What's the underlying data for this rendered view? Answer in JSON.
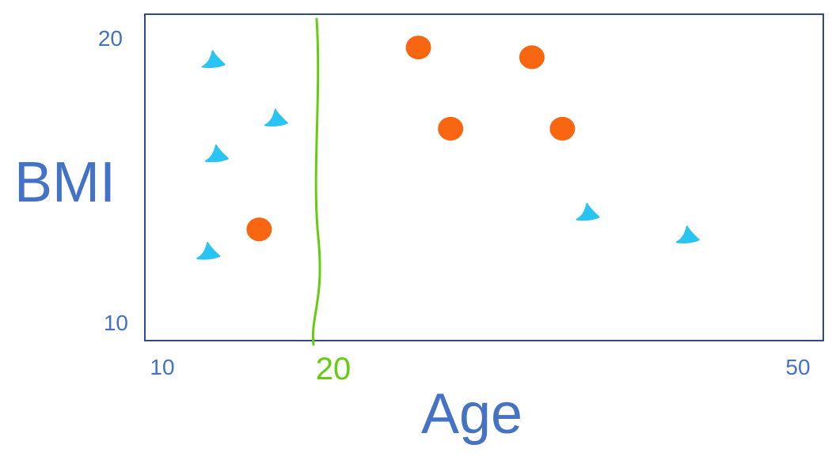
{
  "chart_data": {
    "type": "scatter",
    "xlabel": "Age",
    "ylabel": "BMI",
    "xlim": [
      10,
      50
    ],
    "ylim": [
      10,
      20
    ],
    "x_ticks": [
      "10",
      "50"
    ],
    "y_ticks": [
      "20",
      "10"
    ],
    "threshold": {
      "x": 20,
      "label": "20",
      "color": "#66cc11"
    },
    "series": [
      {
        "marker": "triangle",
        "color": "#29c4f2",
        "points": [
          {
            "x": 14.0,
            "y": 18.6
          },
          {
            "x": 17.7,
            "y": 16.8
          },
          {
            "x": 14.2,
            "y": 15.7
          },
          {
            "x": 13.7,
            "y": 12.7
          },
          {
            "x": 36.1,
            "y": 13.9
          },
          {
            "x": 42.0,
            "y": 13.2
          }
        ]
      },
      {
        "marker": "circle",
        "color": "#f96611",
        "points": [
          {
            "x": 16.7,
            "y": 13.4
          },
          {
            "x": 26.1,
            "y": 19.0
          },
          {
            "x": 28.0,
            "y": 16.5
          },
          {
            "x": 32.8,
            "y": 18.7
          },
          {
            "x": 34.6,
            "y": 16.5
          }
        ]
      }
    ]
  }
}
